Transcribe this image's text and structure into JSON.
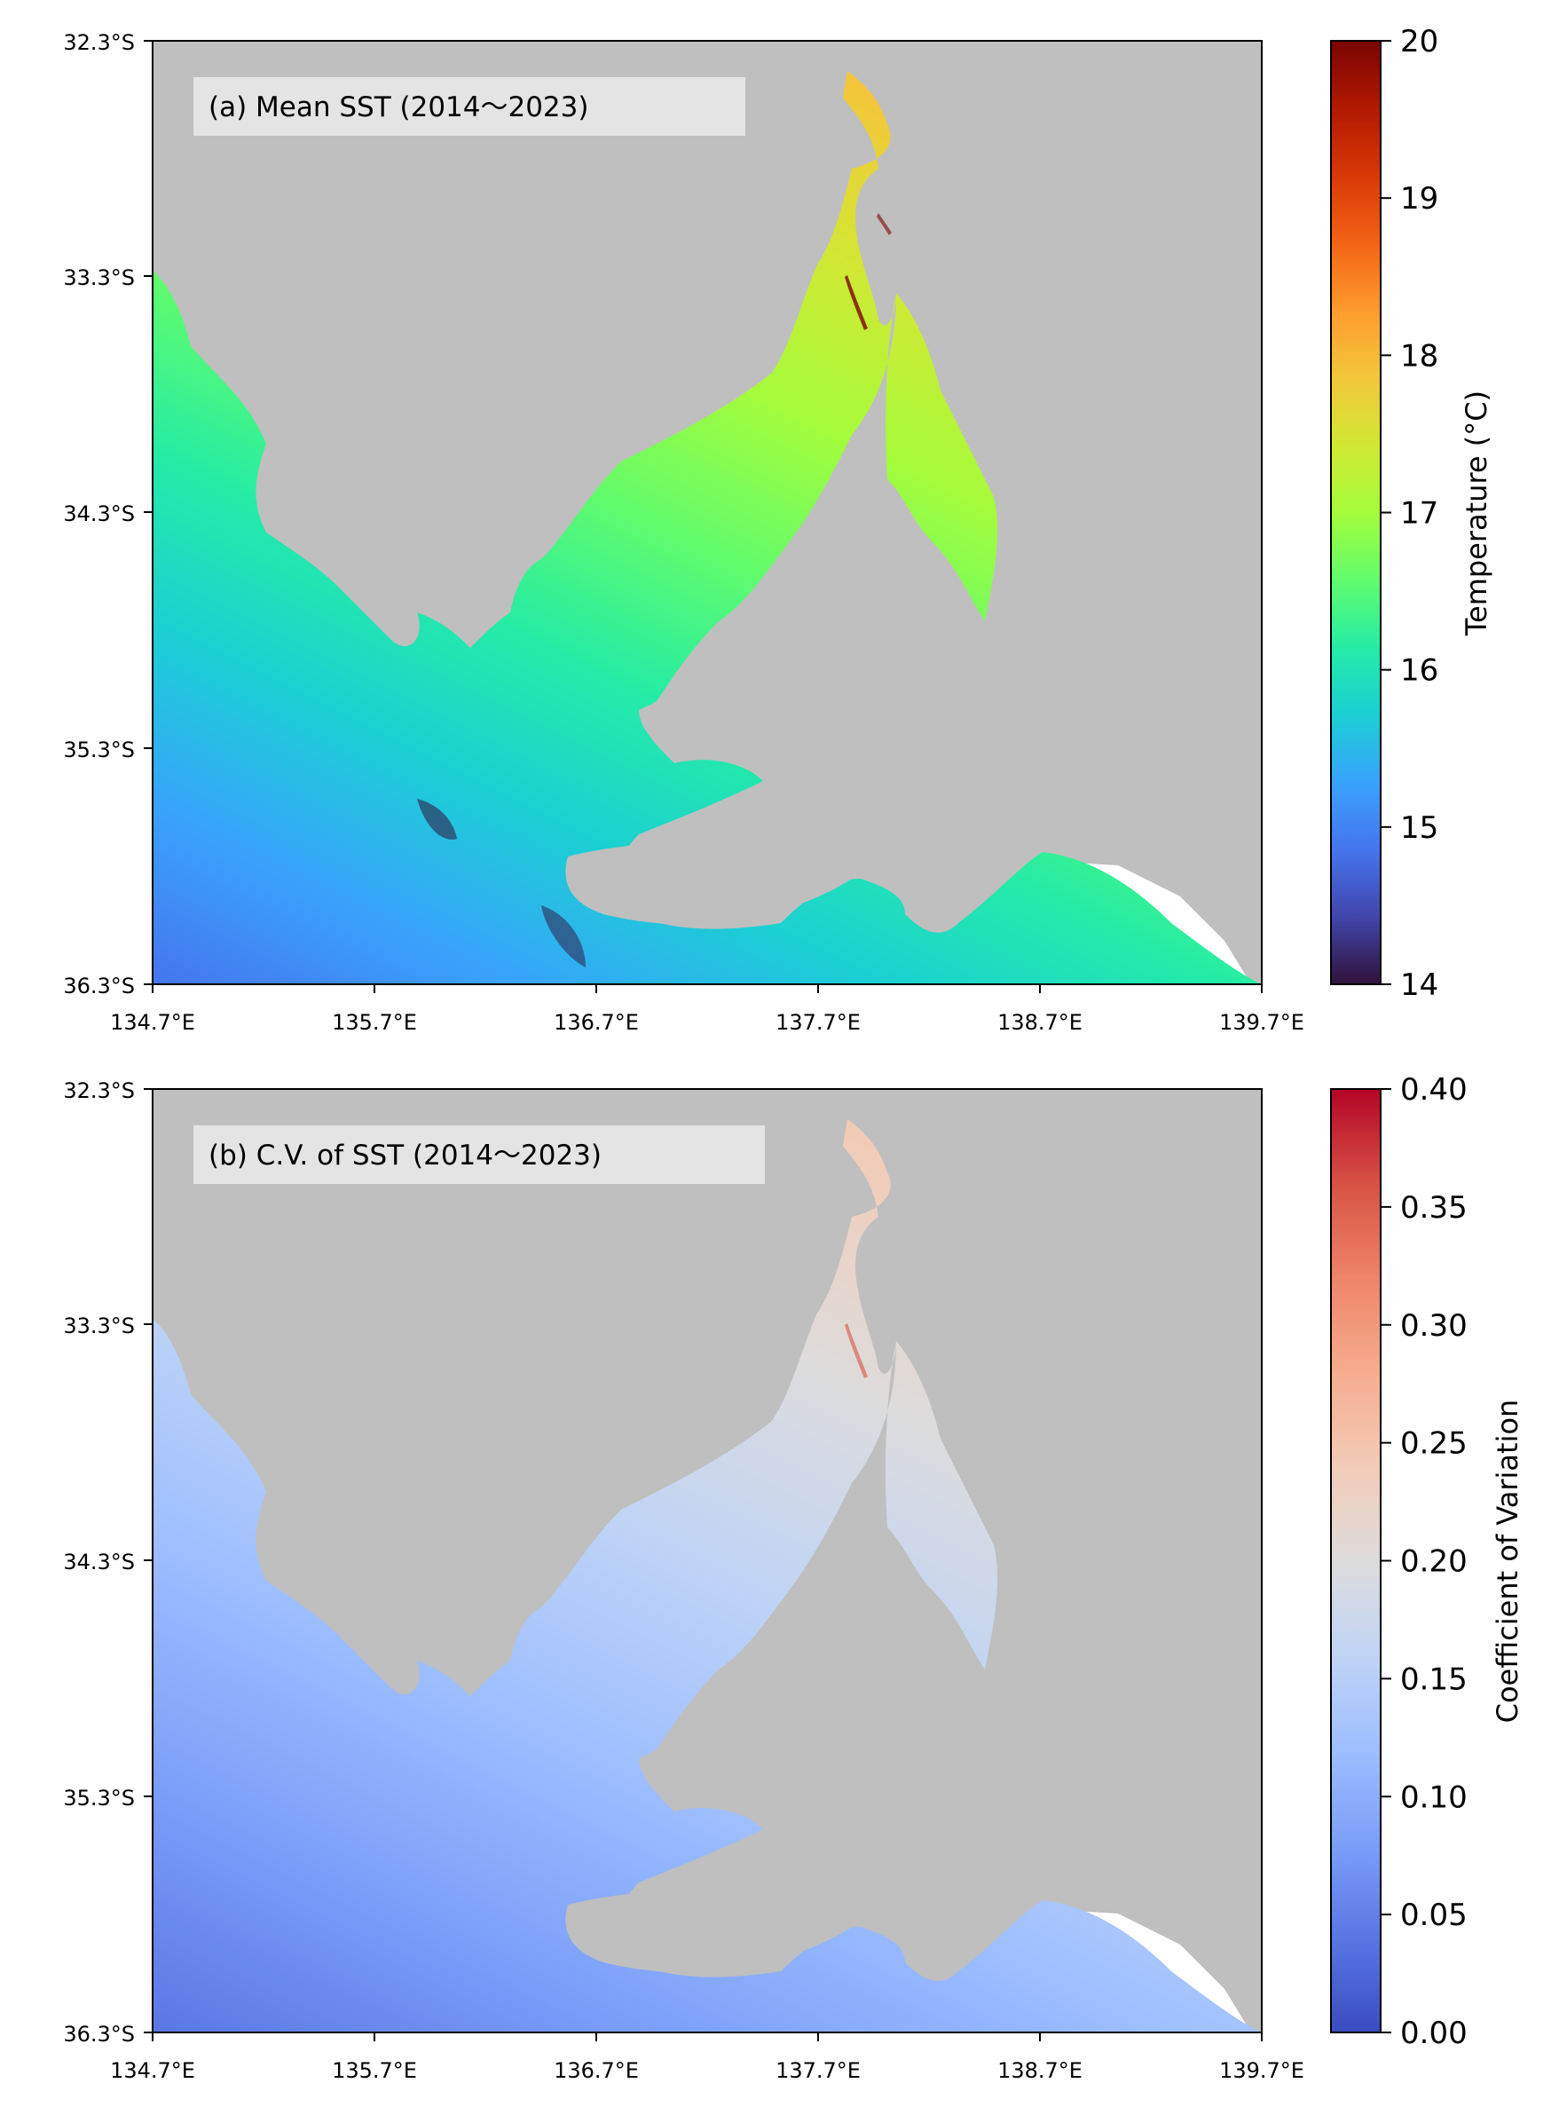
{
  "panels": [
    {
      "id": "a",
      "title": "(a) Mean SST (2014～2023)",
      "colorbar": {
        "label": "Temperature (°C)",
        "min": 14,
        "max": 20,
        "ticks": [
          "14",
          "15",
          "16",
          "17",
          "18",
          "19",
          "20"
        ],
        "colormap": "turbo",
        "stops": [
          "#30123b",
          "#4145ab",
          "#4675ed",
          "#39a2fc",
          "#1bcfd4",
          "#24eca6",
          "#61fc6c",
          "#a4fc3b",
          "#d1e834",
          "#f3c63a",
          "#fe9b2d",
          "#f36315",
          "#d93806",
          "#b11901",
          "#7a0402"
        ]
      }
    },
    {
      "id": "b",
      "title": "(b) C.V. of SST (2014～2023)",
      "colorbar": {
        "label": "Coefficient of Variation",
        "min": 0.0,
        "max": 0.4,
        "ticks": [
          "0.00",
          "0.05",
          "0.10",
          "0.15",
          "0.20",
          "0.25",
          "0.30",
          "0.35",
          "0.40"
        ],
        "colormap": "coolwarm",
        "stops": [
          "#3b4cc0",
          "#5977e3",
          "#7b9ff9",
          "#9ebeff",
          "#c0d4f5",
          "#dddcdc",
          "#f2cbb7",
          "#f7ac8e",
          "#ee8468",
          "#d65244",
          "#b40426"
        ]
      }
    }
  ],
  "axes": {
    "lat_ticks": [
      "32.3°S",
      "33.3°S",
      "34.3°S",
      "35.3°S",
      "36.3°S"
    ],
    "lon_ticks": [
      "134.7°E",
      "135.7°E",
      "136.7°E",
      "137.7°E",
      "138.7°E",
      "139.7°E"
    ],
    "lat_range": [
      -36.3,
      -32.3
    ],
    "lon_range": [
      134.7,
      139.7
    ]
  },
  "colors": {
    "land": "#bfbfbf",
    "no_data": "#ffffff",
    "title_box": "#e6e6e6"
  }
}
